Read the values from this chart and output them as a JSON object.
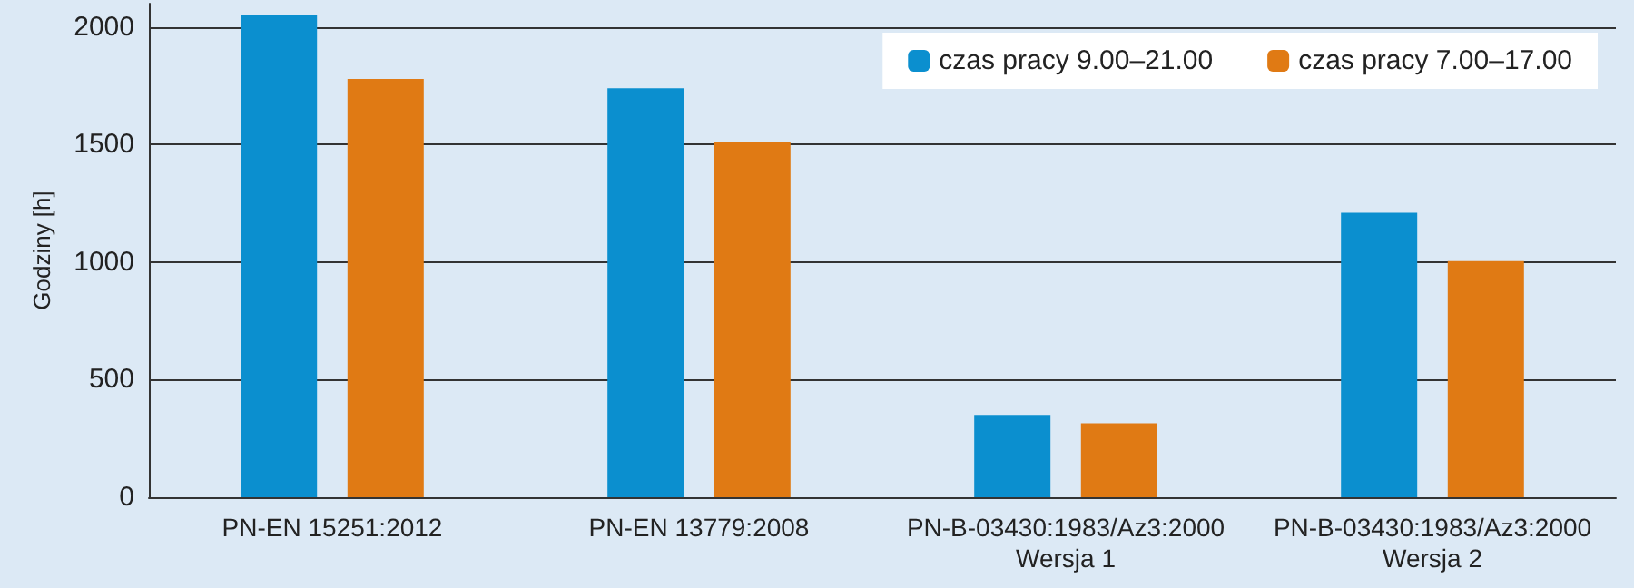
{
  "chart_data": {
    "type": "bar",
    "ylabel": "Godziny [h]",
    "categories": [
      "PN-EN 15251:2012",
      "PN-EN 13779:2008",
      "PN-B-03430:1983/Az3:2000\nWersja 1",
      "PN-B-03430:1983/Az3:2000\nWersja 2"
    ],
    "series": [
      {
        "name": "czas pracy 9.00–21.00",
        "color": "#0b8fcf",
        "values": [
          2050,
          1740,
          350,
          1210
        ]
      },
      {
        "name": "czas pracy 7.00–17.00",
        "color": "#e07a14",
        "values": [
          1780,
          1510,
          315,
          1005
        ]
      }
    ],
    "ylim": [
      0,
      2100
    ],
    "yticks": [
      0,
      500,
      1000,
      1500,
      2000
    ],
    "grid": "y",
    "legend": "top right"
  }
}
